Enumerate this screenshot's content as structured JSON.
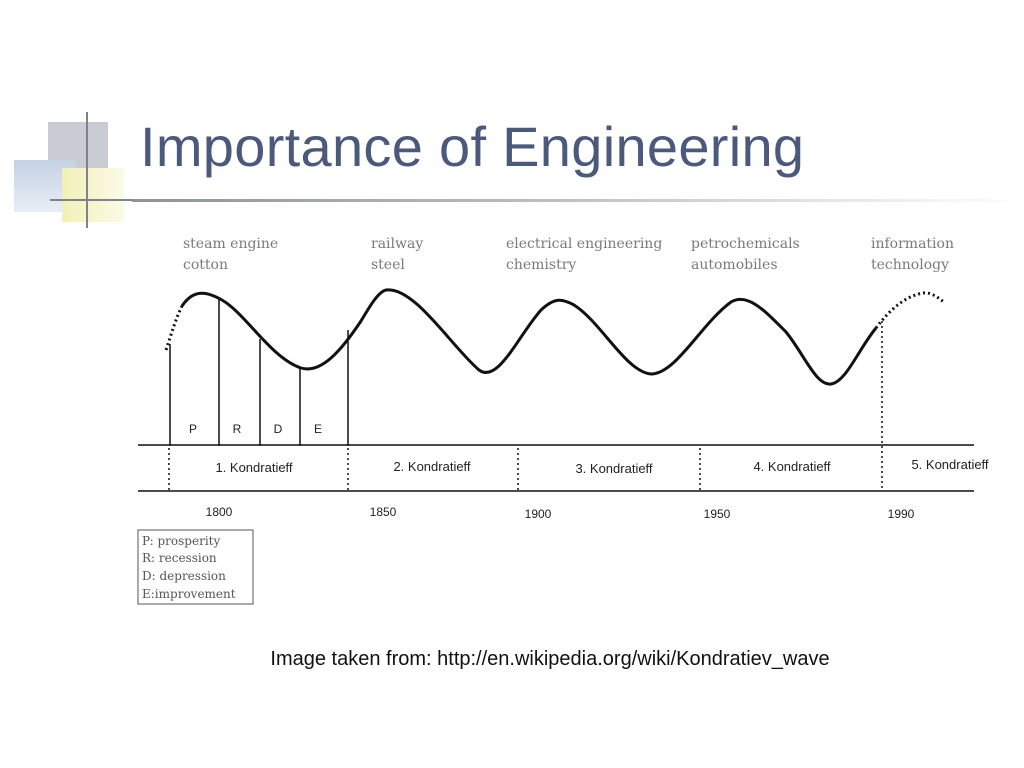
{
  "slide": {
    "title": "Importance of Engineering",
    "caption": "Image taken from: http://en.wikipedia.org/wiki/Kondratiev_wave",
    "colors": {
      "title": "#4b5a7c",
      "curve": "#111111",
      "tech_label": "#7a7a7a"
    }
  },
  "figure": {
    "technologies": [
      {
        "line1": "steam engine",
        "line2": "cotton"
      },
      {
        "line1": "railway",
        "line2": "steel"
      },
      {
        "line1": "electrical engineering",
        "line2": "chemistry"
      },
      {
        "line1": "petrochemicals",
        "line2": "automobiles"
      },
      {
        "line1": "information",
        "line2": "technology"
      }
    ],
    "phases": [
      "P",
      "R",
      "D",
      "E"
    ],
    "waves": [
      "1. Kondratieff",
      "2. Kondratieff",
      "3. Kondratieff",
      "4. Kondratieff",
      "5. Kondratieff"
    ],
    "years": [
      "1800",
      "1850",
      "1900",
      "1950",
      "1990"
    ],
    "legend": [
      "P: prosperity",
      "R: recession",
      "D: depression",
      "E:improvement"
    ]
  }
}
